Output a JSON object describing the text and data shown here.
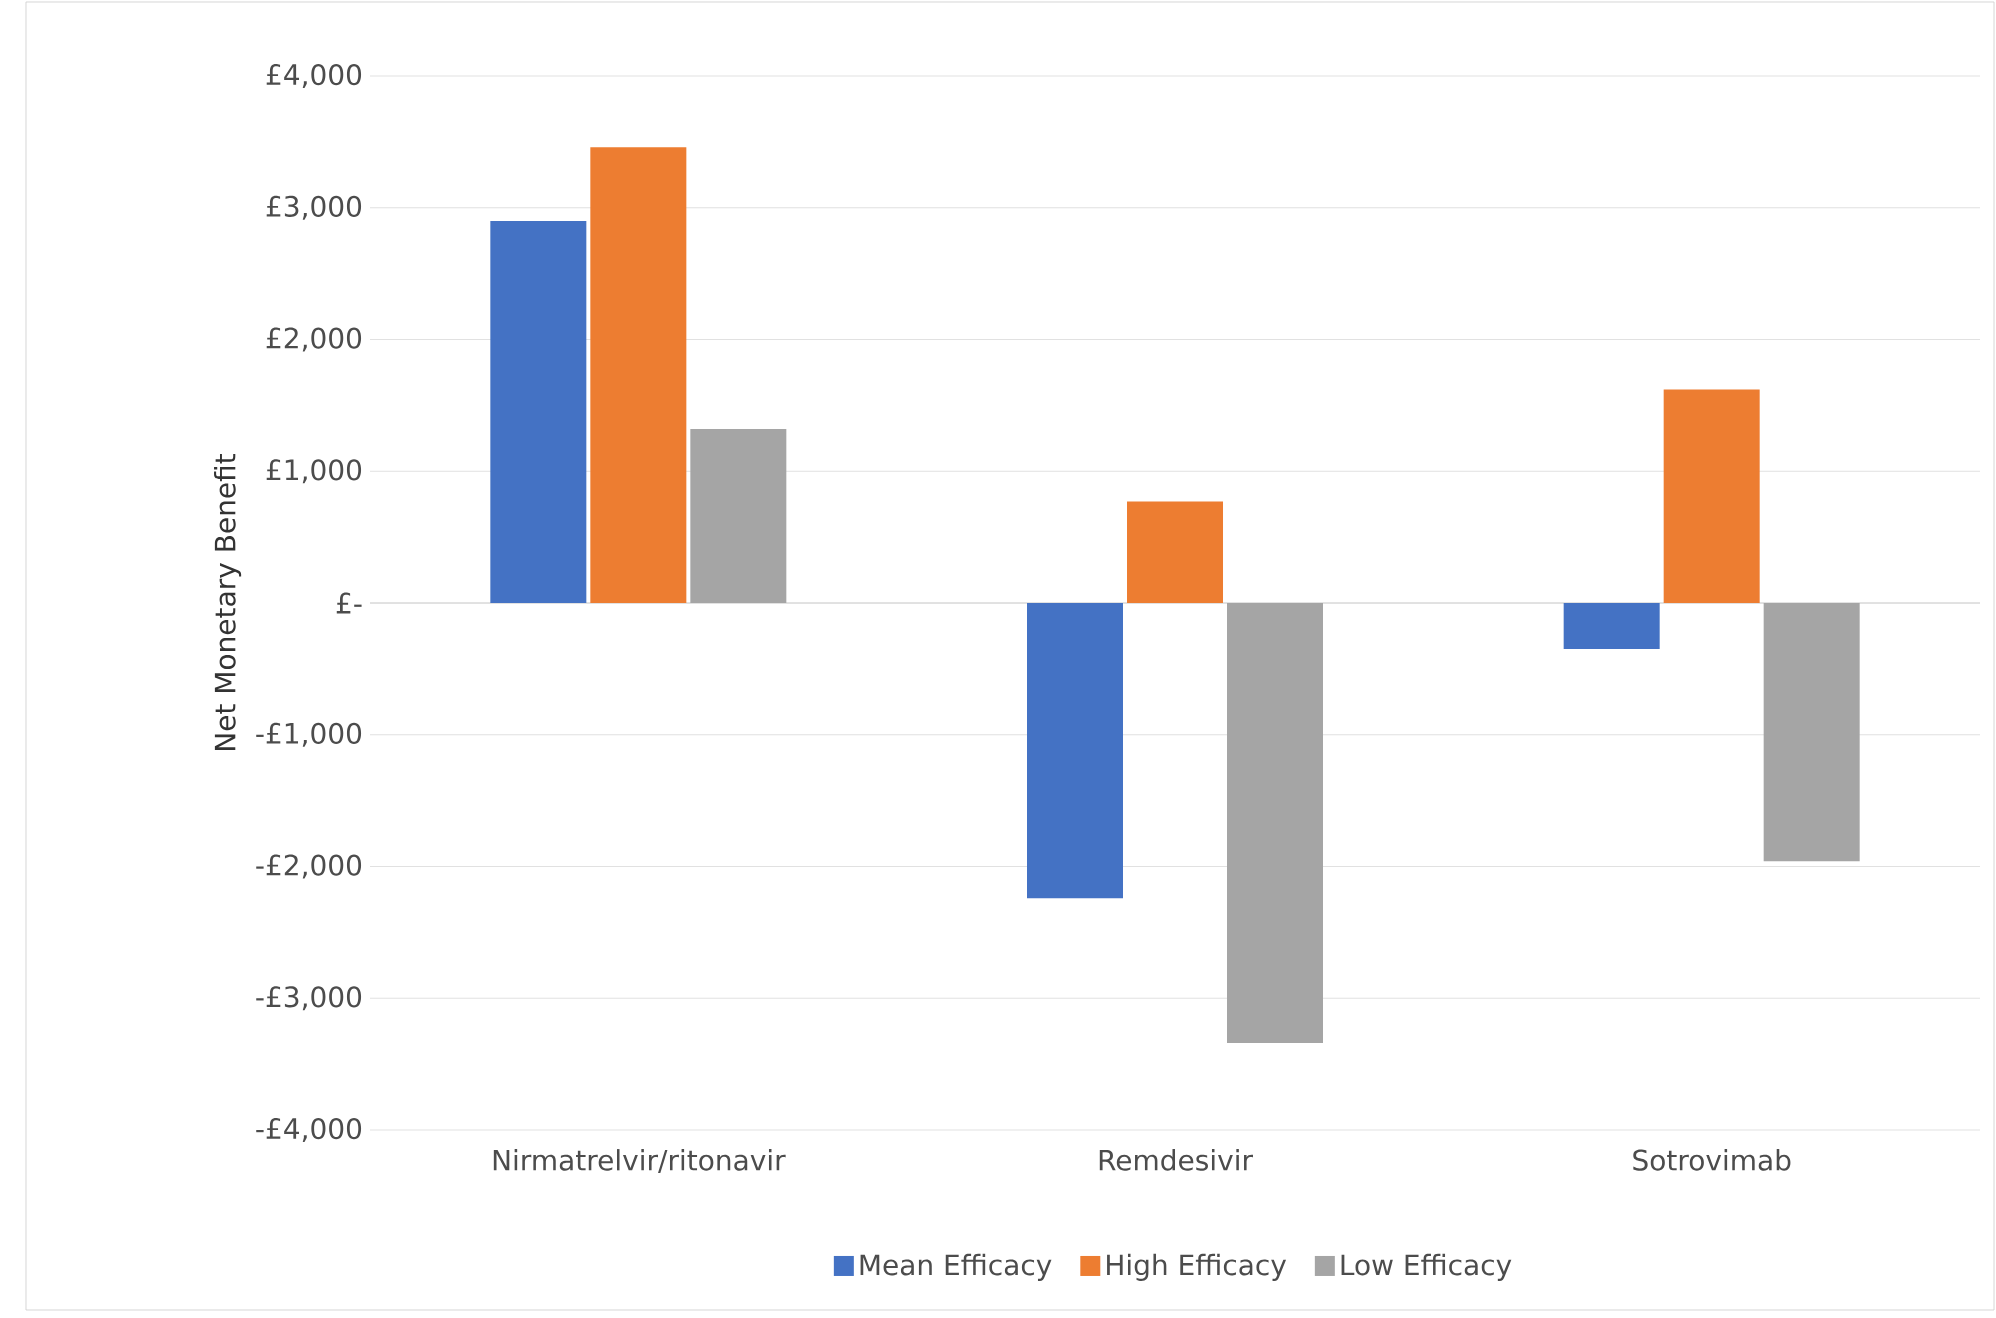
{
  "chart_data": {
    "type": "bar",
    "ylabel": "Net Monetary Benefit",
    "categories": [
      "Nirmatrelvir/ritonavir",
      "Remdesivir",
      "Sotrovimab"
    ],
    "series": [
      {
        "name": "Mean Efficacy",
        "color": "#4472c4",
        "values": [
          2900,
          -2240,
          -350
        ]
      },
      {
        "name": "High Efficacy",
        "color": "#ed7d31",
        "values": [
          3460,
          770,
          1620
        ]
      },
      {
        "name": "Low Efficacy",
        "color": "#a5a5a5",
        "values": [
          1320,
          -3340,
          -1960
        ]
      }
    ],
    "ylim": [
      -4000,
      4000
    ],
    "yticks": [
      {
        "value": -4000,
        "label": "-£4,000"
      },
      {
        "value": -3000,
        "label": "-£3,000"
      },
      {
        "value": -2000,
        "label": "-£2,000"
      },
      {
        "value": -1000,
        "label": "-£1,000"
      },
      {
        "value": 0,
        "label": "£-"
      },
      {
        "value": 1000,
        "label": "£1,000"
      },
      {
        "value": 2000,
        "label": "£2,000"
      },
      {
        "value": 3000,
        "label": "£3,000"
      },
      {
        "value": 4000,
        "label": "£4,000"
      }
    ],
    "grid": "y",
    "legend": "bottom"
  }
}
